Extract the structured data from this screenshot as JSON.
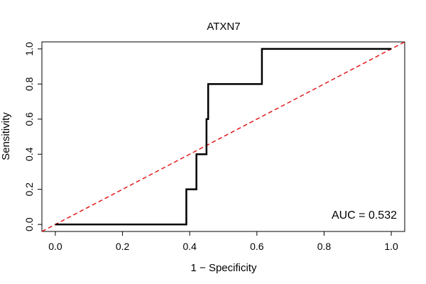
{
  "chart_data": {
    "type": "line",
    "title": "ATXN7",
    "xlabel": "1 − Specificity",
    "ylabel": "Sensitivity",
    "xlim": [
      -0.04,
      1.04
    ],
    "ylim": [
      -0.04,
      1.04
    ],
    "grid": false,
    "legend": "none",
    "x_ticks": [
      0.0,
      0.2,
      0.4,
      0.6,
      0.8,
      1.0
    ],
    "x_tick_labels": [
      "0.0",
      "0.2",
      "0.4",
      "0.6",
      "0.8",
      "1.0"
    ],
    "y_ticks": [
      0.0,
      0.2,
      0.4,
      0.6,
      0.8,
      1.0
    ],
    "y_tick_labels": [
      "0.0",
      "0.2",
      "0.4",
      "0.6",
      "0.8",
      "1.0"
    ],
    "series": [
      {
        "color": "#000000",
        "style": "solid",
        "x": [
          0.0,
          0.39,
          0.39,
          0.42,
          0.42,
          0.45,
          0.45,
          0.455,
          0.455,
          0.46,
          0.46,
          0.615,
          0.615,
          1.0
        ],
        "y": [
          0.0,
          0.0,
          0.2,
          0.2,
          0.4,
          0.4,
          0.6,
          0.6,
          0.8,
          0.8,
          0.8,
          0.8,
          1.0,
          1.0
        ]
      },
      {
        "color": "#e41a1c",
        "style": "dashed",
        "x": [
          -0.04,
          1.04
        ],
        "y": [
          -0.04,
          1.04
        ]
      }
    ],
    "annotations": [
      {
        "text": "AUC = 0.532",
        "position": "bottom-right"
      }
    ]
  }
}
